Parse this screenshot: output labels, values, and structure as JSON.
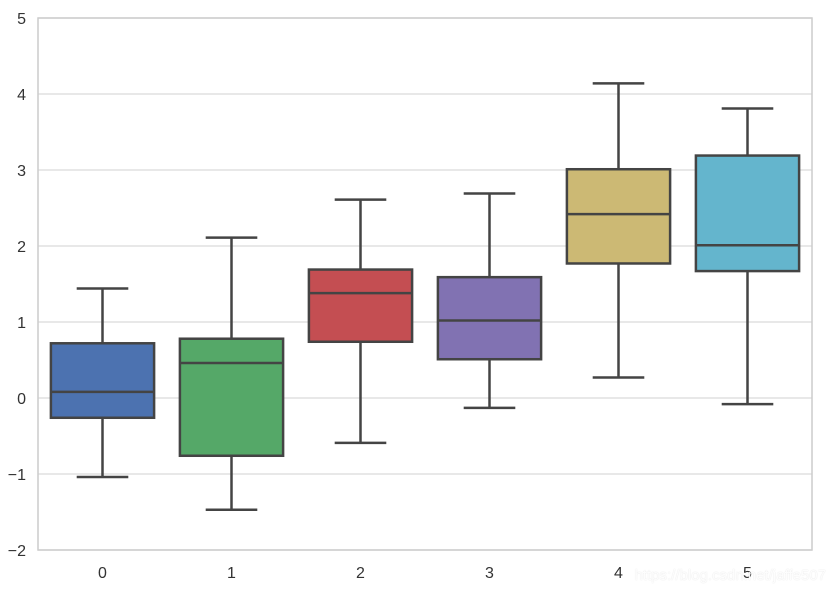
{
  "chart_data": {
    "type": "box",
    "title": "",
    "xlabel": "",
    "ylabel": "",
    "ylim": [
      -2,
      5
    ],
    "yticks": [
      -2,
      -1,
      0,
      1,
      2,
      3,
      4,
      5
    ],
    "grid": true,
    "categories": [
      "0",
      "1",
      "2",
      "3",
      "4",
      "5"
    ],
    "boxes": [
      {
        "category": "0",
        "whisker_low": -1.04,
        "q1": -0.26,
        "median": 0.08,
        "q3": 0.72,
        "whisker_high": 1.44,
        "color": "#4c72b0"
      },
      {
        "category": "1",
        "whisker_low": -1.47,
        "q1": -0.76,
        "median": 0.46,
        "q3": 0.78,
        "whisker_high": 2.11,
        "color": "#55a868"
      },
      {
        "category": "2",
        "whisker_low": -0.59,
        "q1": 0.74,
        "median": 1.38,
        "q3": 1.69,
        "whisker_high": 2.61,
        "color": "#c44e52"
      },
      {
        "category": "3",
        "whisker_low": -0.13,
        "q1": 0.51,
        "median": 1.02,
        "q3": 1.59,
        "whisker_high": 2.69,
        "color": "#8172b2"
      },
      {
        "category": "4",
        "whisker_low": 0.27,
        "q1": 1.77,
        "median": 2.42,
        "q3": 3.01,
        "whisker_high": 4.14,
        "color": "#ccb974"
      },
      {
        "category": "5",
        "whisker_low": -0.08,
        "q1": 1.67,
        "median": 2.01,
        "q3": 3.19,
        "whisker_high": 3.81,
        "color": "#64b5cd"
      }
    ]
  },
  "watermark": "https://blog.csdn.net/jaffe507"
}
